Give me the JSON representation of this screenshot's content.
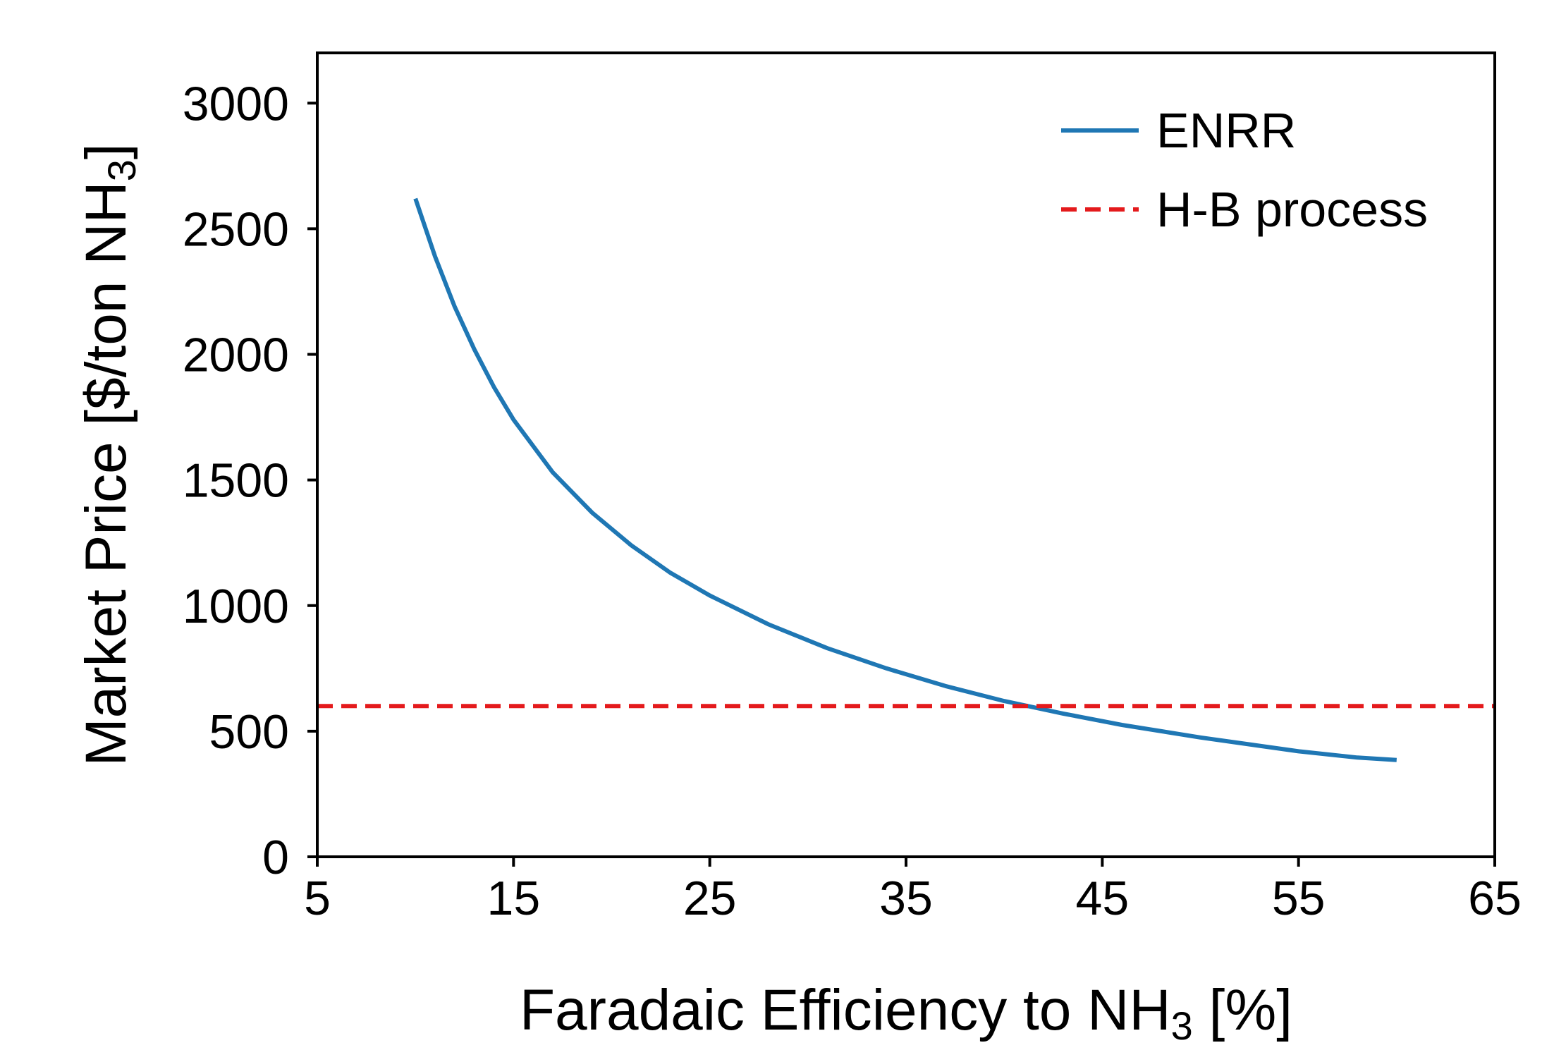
{
  "chart_data": {
    "type": "line",
    "title": "",
    "xlabel": {
      "prefix": "Faradaic Efficiency to NH",
      "subscript": "3",
      "suffix": " [%]"
    },
    "ylabel": {
      "prefix": "Market Price [$/ton NH",
      "subscript": "3",
      "suffix": "]"
    },
    "xlim": [
      5,
      65
    ],
    "ylim": [
      0,
      3200
    ],
    "xticks": [
      5,
      15,
      25,
      35,
      45,
      55,
      65
    ],
    "yticks": [
      0,
      500,
      1000,
      1500,
      2000,
      2500,
      3000
    ],
    "grid": false,
    "legend_position": "top-right",
    "series": [
      {
        "name": "ENRR",
        "style": "solid",
        "color": "#1f77b4",
        "x": [
          10,
          11,
          12,
          13,
          14,
          15,
          17,
          19,
          21,
          23,
          25,
          28,
          31,
          34,
          37,
          40,
          43,
          46,
          50,
          55,
          58,
          60
        ],
        "y": [
          2620,
          2390,
          2190,
          2020,
          1870,
          1740,
          1530,
          1370,
          1240,
          1130,
          1040,
          925,
          830,
          750,
          680,
          620,
          570,
          525,
          475,
          420,
          395,
          385
        ]
      },
      {
        "name": "H-B process",
        "style": "dashed",
        "color": "#e41a1c",
        "x": [
          5,
          65
        ],
        "y": [
          600,
          600
        ]
      }
    ]
  }
}
